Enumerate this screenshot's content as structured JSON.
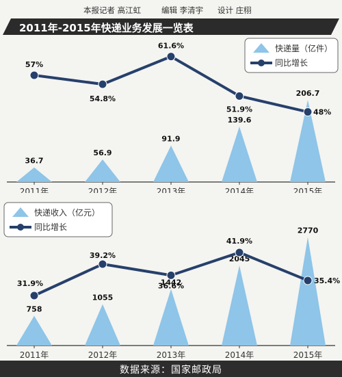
{
  "credits": {
    "reporter": "本报记者 高江虹",
    "editor": "编辑 李清宇",
    "design": "设计 庄栩"
  },
  "title": "2011年-2015年快递业务发展一览表",
  "source": "数据来源：国家邮政局",
  "colors": {
    "bar": "#8ec5e8",
    "line": "#27406b",
    "axis": "#333333",
    "label": "#111111"
  },
  "chart_data": [
    {
      "type": "bar",
      "categories": [
        "2011年",
        "2012年",
        "2013年",
        "2014年",
        "2015年"
      ],
      "series": [
        {
          "name": "快递量（亿件）",
          "values": [
            36.7,
            56.9,
            91.9,
            139.6,
            206.7
          ],
          "value_labels": [
            "36.7",
            "56.9",
            "91.9",
            "139.6",
            "206.7"
          ]
        },
        {
          "name": "同比增长",
          "type": "line",
          "values": [
            57,
            54.8,
            61.6,
            51.9,
            48
          ],
          "value_labels": [
            "57%",
            "54.8%",
            "61.6%",
            "51.9%",
            "48%"
          ]
        }
      ],
      "legend_position": "top-right"
    },
    {
      "type": "bar",
      "categories": [
        "2011年",
        "2012年",
        "2013年",
        "2014年",
        "2015年"
      ],
      "series": [
        {
          "name": "快递收入（亿元）",
          "values": [
            758,
            1055,
            1442,
            2045,
            2770
          ],
          "value_labels": [
            "758",
            "1055",
            "1442",
            "2045",
            "2770"
          ]
        },
        {
          "name": "同比增长",
          "type": "line",
          "values": [
            31.9,
            39.2,
            36.6,
            41.9,
            35.4
          ],
          "value_labels": [
            "31.9%",
            "39.2%",
            "36.6%",
            "41.9%",
            "35.4%"
          ]
        }
      ],
      "legend_position": "top-left"
    }
  ]
}
